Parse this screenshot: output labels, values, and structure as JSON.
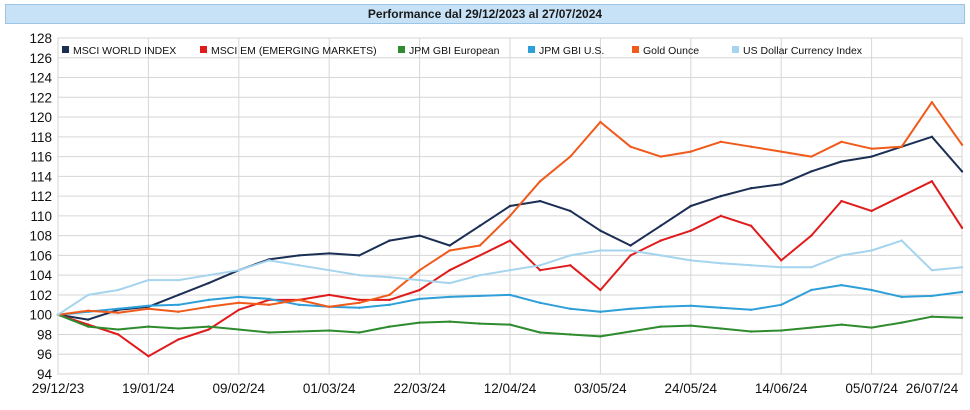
{
  "chart_data": {
    "type": "line",
    "title": "Performance dal 29/12/2023 al 27/07/2024",
    "xlabel": "",
    "ylabel": "",
    "ylim": [
      94,
      128
    ],
    "yticks": [
      94,
      96,
      98,
      100,
      102,
      104,
      106,
      108,
      110,
      112,
      114,
      116,
      118,
      120,
      122,
      124,
      126,
      128
    ],
    "xticks": [
      "29/12/23",
      "19/01/24",
      "09/02/24",
      "01/03/24",
      "22/03/24",
      "12/04/24",
      "03/05/24",
      "24/05/24",
      "14/06/24",
      "05/07/24",
      "26/07/24"
    ],
    "grid": true,
    "legend_position": "top-left",
    "x_count": 31,
    "series": [
      {
        "name": "MSCI WORLD INDEX",
        "color": "#1b2f55",
        "values": [
          100.0,
          99.5,
          100.5,
          100.8,
          102.0,
          103.2,
          104.5,
          105.6,
          106.0,
          106.2,
          106.0,
          107.5,
          108.0,
          107.0,
          109.0,
          111.0,
          111.5,
          110.5,
          108.5,
          107.0,
          109.0,
          111.0,
          112.0,
          112.8,
          113.2,
          114.5,
          115.5,
          116.0,
          117.0,
          118.0,
          114.5
        ]
      },
      {
        "name": "MSCI EM (EMERGING MARKETS)",
        "color": "#e01b1b",
        "values": [
          100.0,
          99.0,
          98.0,
          95.8,
          97.5,
          98.5,
          100.5,
          101.5,
          101.5,
          102.0,
          101.5,
          101.5,
          102.5,
          104.5,
          106.0,
          107.5,
          104.5,
          105.0,
          102.5,
          106.0,
          107.5,
          108.5,
          110.0,
          109.0,
          105.5,
          108.0,
          111.5,
          110.5,
          112.0,
          113.5,
          108.8
        ]
      },
      {
        "name": "JPM GBI European",
        "color": "#2e8b2e",
        "values": [
          100.0,
          98.8,
          98.5,
          98.8,
          98.6,
          98.8,
          98.5,
          98.2,
          98.3,
          98.4,
          98.2,
          98.8,
          99.2,
          99.3,
          99.1,
          99.0,
          98.2,
          98.0,
          97.8,
          98.3,
          98.8,
          98.9,
          98.6,
          98.3,
          98.4,
          98.7,
          99.0,
          98.7,
          99.2,
          99.8,
          99.7
        ]
      },
      {
        "name": "JPM GBI U.S.",
        "color": "#2e9fd8",
        "values": [
          100.0,
          100.3,
          100.6,
          100.9,
          101.0,
          101.5,
          101.8,
          101.6,
          101.0,
          100.8,
          100.7,
          101.0,
          101.6,
          101.8,
          101.9,
          102.0,
          101.2,
          100.6,
          100.3,
          100.6,
          100.8,
          100.9,
          100.7,
          100.5,
          101.0,
          102.5,
          103.0,
          102.5,
          101.8,
          101.9,
          102.3
        ]
      },
      {
        "name": "Gold Ounce",
        "color": "#f05a1a",
        "values": [
          100.0,
          100.4,
          100.2,
          100.6,
          100.3,
          100.8,
          101.2,
          101.0,
          101.5,
          100.8,
          101.2,
          102.0,
          104.5,
          106.5,
          107.0,
          110.0,
          113.5,
          116.0,
          119.5,
          117.0,
          116.0,
          116.5,
          117.5,
          117.0,
          116.5,
          116.0,
          117.5,
          116.8,
          117.0,
          121.5,
          117.2
        ]
      },
      {
        "name": "US Dollar Currency Index",
        "color": "#a5d4ee",
        "values": [
          100.0,
          102.0,
          102.5,
          103.5,
          103.5,
          104.0,
          104.5,
          105.5,
          105.0,
          104.5,
          104.0,
          103.8,
          103.5,
          103.2,
          104.0,
          104.5,
          105.0,
          106.0,
          106.5,
          106.5,
          106.0,
          105.5,
          105.2,
          105.0,
          104.8,
          104.8,
          106.0,
          106.5,
          107.5,
          104.5,
          104.8
        ]
      }
    ]
  }
}
